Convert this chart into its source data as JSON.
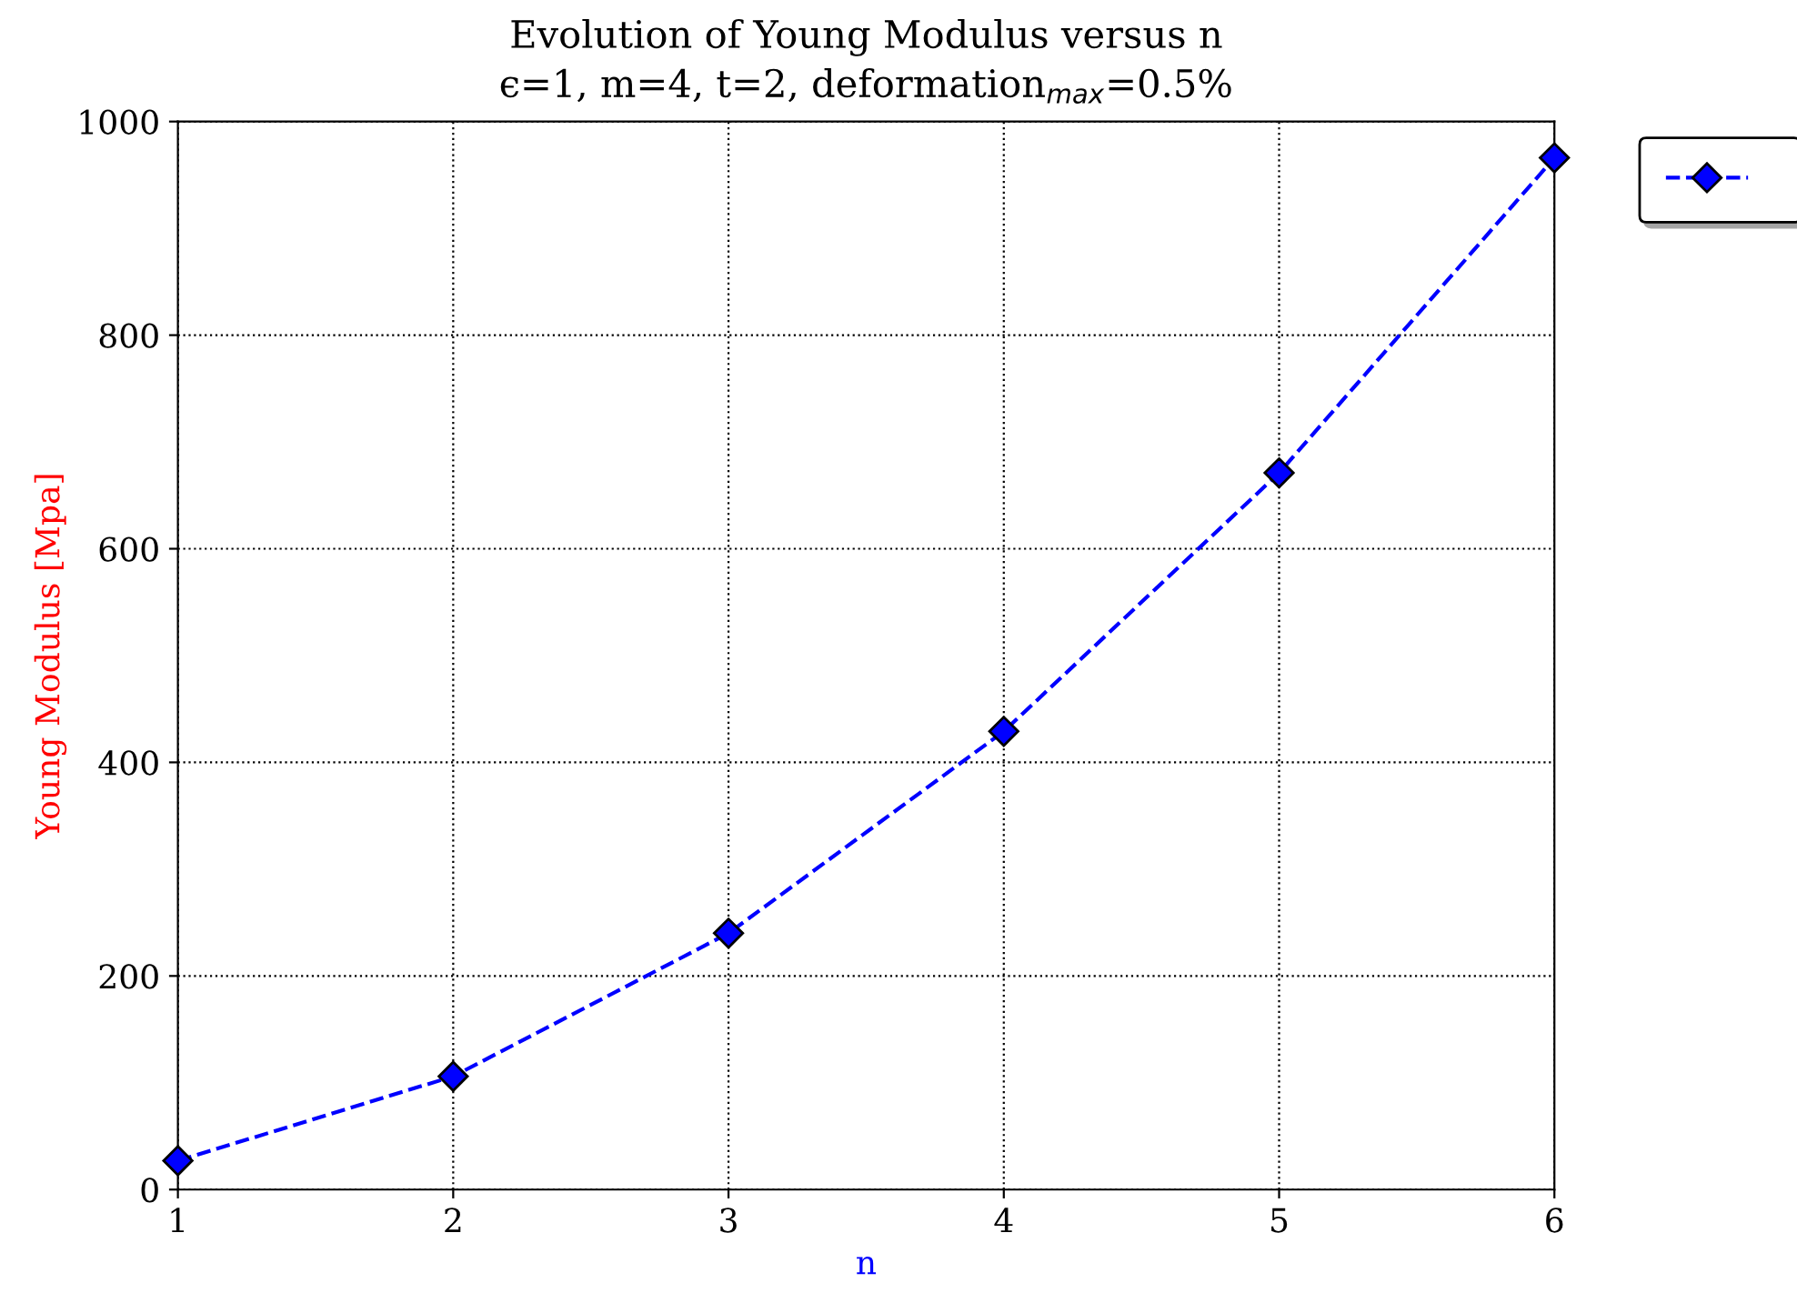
{
  "chart_data": {
    "type": "line",
    "title": "Evolution of Young Modulus versus n",
    "subtitle": "ϵ=1, m=4, t=2, deformation$_{max}$=0.5%",
    "xlabel": "n",
    "ylabel": "Young Modulus [Mpa]",
    "x": [
      1,
      2,
      3,
      4,
      5,
      6
    ],
    "series": [
      {
        "color": "#0000ff",
        "values": [
          27,
          106,
          240,
          429,
          671,
          966
        ]
      }
    ],
    "xlim": [
      1,
      6
    ],
    "xticks": [
      1,
      2,
      3,
      4,
      5,
      6
    ],
    "ylim": [
      0,
      1000
    ],
    "yticks": [
      0,
      200,
      400,
      600,
      800,
      1000
    ],
    "grid": true,
    "marker": "diamond",
    "line_style": "dashed"
  }
}
